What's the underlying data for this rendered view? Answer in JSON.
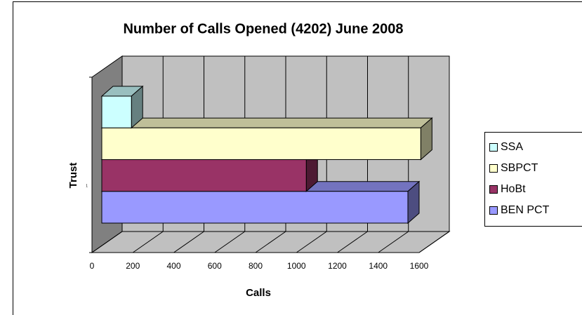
{
  "chart_data": {
    "type": "bar3d",
    "title": "Number of Calls Opened (4202) June 2008",
    "x_label": "Calls",
    "y_label": "Trust",
    "categories": [
      "1"
    ],
    "series": [
      {
        "name": "SSA",
        "color": "#ccffff",
        "values": [
          145
        ]
      },
      {
        "name": "SBPCT",
        "color": "#ffffcc",
        "values": [
          1560
        ]
      },
      {
        "name": "HoBt",
        "color": "#993366",
        "values": [
          1000
        ]
      },
      {
        "name": "BEN PCT",
        "color": "#9999ff",
        "values": [
          1497
        ]
      }
    ],
    "xlim": [
      0,
      1600
    ],
    "xticks": [
      0,
      200,
      400,
      600,
      800,
      1000,
      1200,
      1400,
      1600
    ],
    "grid": true,
    "legend": "right"
  }
}
